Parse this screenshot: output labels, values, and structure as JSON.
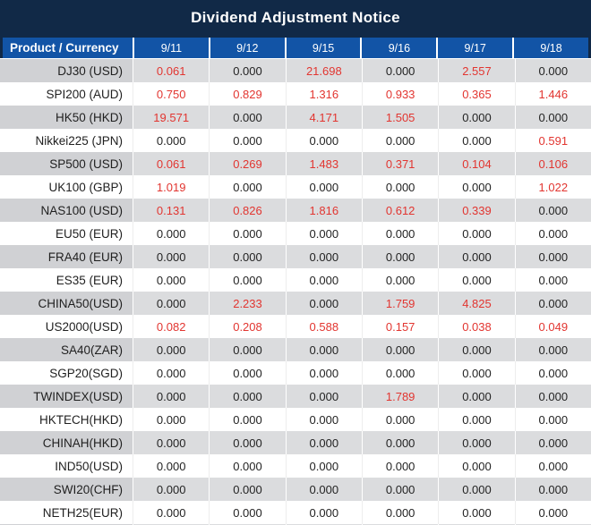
{
  "title": "Dividend Adjustment Notice",
  "colors": {
    "title_bar_navy": "#112947",
    "header_cell_blue": "#1254A6",
    "row_stripe_gray": "#DBDCDE",
    "product_stripe_gray": "#D0D1D4",
    "nonzero_value_red": "#E23530",
    "zero_value_black": "#232323"
  },
  "table": {
    "product_header": "Product / Currency",
    "date_columns": [
      "9/11",
      "9/12",
      "9/15",
      "9/16",
      "9/17",
      "9/18"
    ],
    "rows": [
      {
        "product": "DJ30 (USD)",
        "values": [
          "0.061",
          "0.000",
          "21.698",
          "0.000",
          "2.557",
          "0.000"
        ]
      },
      {
        "product": "SPI200 (AUD)",
        "values": [
          "0.750",
          "0.829",
          "1.316",
          "0.933",
          "0.365",
          "1.446"
        ]
      },
      {
        "product": "HK50 (HKD)",
        "values": [
          "19.571",
          "0.000",
          "4.171",
          "1.505",
          "0.000",
          "0.000"
        ]
      },
      {
        "product": "Nikkei225 (JPN)",
        "values": [
          "0.000",
          "0.000",
          "0.000",
          "0.000",
          "0.000",
          "0.591"
        ]
      },
      {
        "product": "SP500 (USD)",
        "values": [
          "0.061",
          "0.269",
          "1.483",
          "0.371",
          "0.104",
          "0.106"
        ]
      },
      {
        "product": "UK100 (GBP)",
        "values": [
          "1.019",
          "0.000",
          "0.000",
          "0.000",
          "0.000",
          "1.022"
        ]
      },
      {
        "product": "NAS100 (USD)",
        "values": [
          "0.131",
          "0.826",
          "1.816",
          "0.612",
          "0.339",
          "0.000"
        ]
      },
      {
        "product": "EU50 (EUR)",
        "values": [
          "0.000",
          "0.000",
          "0.000",
          "0.000",
          "0.000",
          "0.000"
        ]
      },
      {
        "product": "FRA40 (EUR)",
        "values": [
          "0.000",
          "0.000",
          "0.000",
          "0.000",
          "0.000",
          "0.000"
        ]
      },
      {
        "product": "ES35 (EUR)",
        "values": [
          "0.000",
          "0.000",
          "0.000",
          "0.000",
          "0.000",
          "0.000"
        ]
      },
      {
        "product": "CHINA50(USD)",
        "values": [
          "0.000",
          "2.233",
          "0.000",
          "1.759",
          "4.825",
          "0.000"
        ]
      },
      {
        "product": "US2000(USD)",
        "values": [
          "0.082",
          "0.208",
          "0.588",
          "0.157",
          "0.038",
          "0.049"
        ]
      },
      {
        "product": "SA40(ZAR)",
        "values": [
          "0.000",
          "0.000",
          "0.000",
          "0.000",
          "0.000",
          "0.000"
        ]
      },
      {
        "product": "SGP20(SGD)",
        "values": [
          "0.000",
          "0.000",
          "0.000",
          "0.000",
          "0.000",
          "0.000"
        ]
      },
      {
        "product": "TWINDEX(USD)",
        "values": [
          "0.000",
          "0.000",
          "0.000",
          "1.789",
          "0.000",
          "0.000"
        ]
      },
      {
        "product": "HKTECH(HKD)",
        "values": [
          "0.000",
          "0.000",
          "0.000",
          "0.000",
          "0.000",
          "0.000"
        ]
      },
      {
        "product": "CHINAH(HKD)",
        "values": [
          "0.000",
          "0.000",
          "0.000",
          "0.000",
          "0.000",
          "0.000"
        ]
      },
      {
        "product": "IND50(USD)",
        "values": [
          "0.000",
          "0.000",
          "0.000",
          "0.000",
          "0.000",
          "0.000"
        ]
      },
      {
        "product": "SWI20(CHF)",
        "values": [
          "0.000",
          "0.000",
          "0.000",
          "0.000",
          "0.000",
          "0.000"
        ]
      },
      {
        "product": "NETH25(EUR)",
        "values": [
          "0.000",
          "0.000",
          "0.000",
          "0.000",
          "0.000",
          "0.000"
        ]
      }
    ]
  }
}
